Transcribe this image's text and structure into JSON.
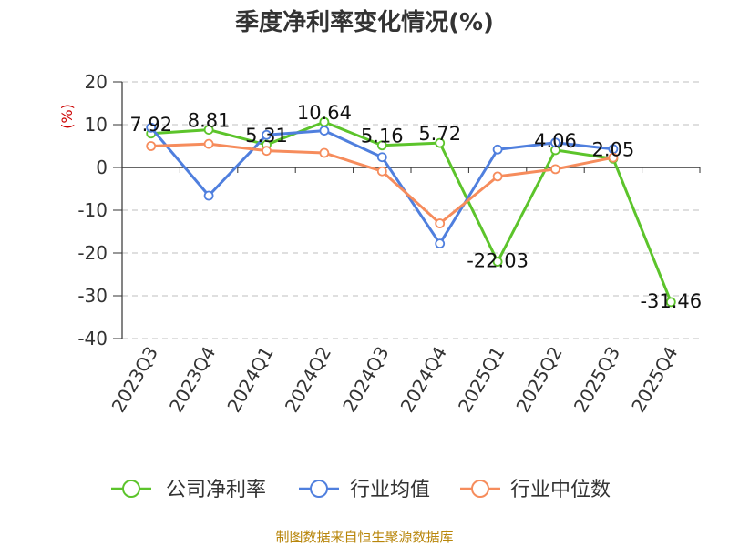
{
  "chart_data": {
    "type": "line",
    "title": "季度净利率变化情况(%)",
    "ylabel": "(%)",
    "xlabel": "",
    "categories": [
      "2023Q3",
      "2023Q4",
      "2024Q1",
      "2024Q2",
      "2024Q3",
      "2024Q4",
      "2025Q1",
      "2025Q2",
      "2025Q3",
      "2025Q4"
    ],
    "ylim": [
      -40,
      20
    ],
    "yticks": [
      20,
      10,
      0,
      -10,
      -20,
      -30,
      -40
    ],
    "grid": "horizontal dashed",
    "legend_position": "bottom",
    "series": [
      {
        "name": "公司净利率",
        "color": "#5cc42b",
        "values": [
          7.92,
          8.81,
          5.31,
          10.64,
          5.16,
          5.72,
          -22.03,
          4.06,
          2.05,
          -31.46
        ],
        "labels": [
          "7.92",
          "8.81",
          "5.31",
          "10.64",
          "5.16",
          "5.72",
          "-22.03",
          "4.06",
          "2.05",
          "-31.46"
        ]
      },
      {
        "name": "行业均值",
        "color": "#4f7fde",
        "values": [
          9.3,
          -6.6,
          7.6,
          8.6,
          2.4,
          -17.8,
          4.2,
          5.8,
          4.3,
          null
        ]
      },
      {
        "name": "行业中位数",
        "color": "#f68c5c",
        "values": [
          5.0,
          5.5,
          3.9,
          3.4,
          -0.9,
          -13.1,
          -2.1,
          -0.4,
          2.3,
          null
        ]
      }
    ]
  },
  "source": "制图数据来自恒生聚源数据库"
}
